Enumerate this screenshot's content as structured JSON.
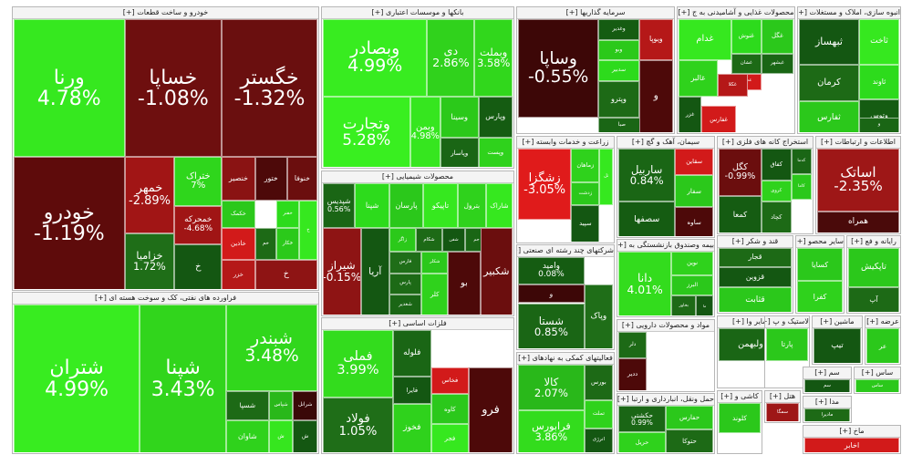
{
  "chart_data": {
    "type": "treemap",
    "colors": {
      "strong_up": "#2fe01b",
      "up": "#27b61a",
      "mild_up": "#2a8c20",
      "flat_green": "#1f6b1a",
      "dark_green": "#155c12",
      "dark_down": "#4a0a0a",
      "down": "#7a1212",
      "mild_down": "#9e1717",
      "strong_down": "#e01b1b"
    },
    "groups": [
      {
        "title": "خودرو و ساخت قطعات [+]",
        "tiles": [
          {
            "name": "ورنا",
            "change": "4.78%",
            "color": "#36e81f"
          },
          {
            "name": "خساپا",
            "change": "-1.08%",
            "color": "#6e0f0f"
          },
          {
            "name": "خگستر",
            "change": "-1.32%",
            "color": "#6a0f0f"
          },
          {
            "name": "خودرو",
            "change": "-1.19%",
            "color": "#5e0b0b"
          },
          {
            "name": "خمهر",
            "change": "-2.89%",
            "color": "#a11515"
          },
          {
            "name": "ختراک",
            "change": "7%",
            "color": "#2fd61c"
          },
          {
            "name": "خنصیر",
            "change": "",
            "color": "#8a1313"
          },
          {
            "name": "ختور",
            "change": "",
            "color": "#4d0909"
          },
          {
            "name": "خنوفا",
            "change": "",
            "color": "#6b0e0e"
          },
          {
            "name": "خمحرکه",
            "change": "-4.68%",
            "color": "#a01515"
          },
          {
            "name": "خکمک",
            "change": "",
            "color": "#2bc81b"
          },
          {
            "name": "خفنر",
            "change": "",
            "color": "#2ddb1c"
          },
          {
            "name": "خزامیا",
            "change": "1.72%",
            "color": "#1f6e18"
          },
          {
            "name": "خاذین",
            "change": "",
            "color": "#d21a1a"
          },
          {
            "name": "خم",
            "change": "",
            "color": "#1d6a16"
          },
          {
            "name": "خزر",
            "change": "",
            "color": "#b51818"
          },
          {
            "name": "خکار",
            "change": "",
            "color": "#2bc91a"
          },
          {
            "name": "خ",
            "change": "",
            "color": "#36e81f"
          },
          {
            "name": "خ",
            "change": "",
            "color": "#145712"
          },
          {
            "name": "خ",
            "change": "",
            "color": "#8e1414"
          }
        ]
      },
      {
        "title": "فراورده های نفتی، کک و سوخت هسته ای [+]",
        "tiles": [
          {
            "name": "شتران",
            "change": "4.99%",
            "color": "#38ec20"
          },
          {
            "name": "شپنا",
            "change": "3.43%",
            "color": "#31d51c"
          },
          {
            "name": "شبندر",
            "change": "3.48%",
            "color": "#31d71c"
          },
          {
            "name": "شسپا",
            "change": "",
            "color": "#1d6a16"
          },
          {
            "name": "شاوان",
            "change": "",
            "color": "#2fd21c"
          },
          {
            "name": "شپاس",
            "change": "",
            "color": "#29b81a"
          },
          {
            "name": "شرانل",
            "change": "",
            "color": "#3a0808"
          },
          {
            "name": "ش",
            "change": "",
            "color": "#36e61f"
          },
          {
            "name": "ش",
            "change": "",
            "color": "#145712"
          }
        ]
      },
      {
        "title": "بانکها و موسسات اعتباری [+]",
        "tiles": [
          {
            "name": "وبصادر",
            "change": "4.99%",
            "color": "#38ec20"
          },
          {
            "name": "دی",
            "change": "2.86%",
            "color": "#30d21c"
          },
          {
            "name": "وبملت",
            "change": "3.58%",
            "color": "#31d71c"
          },
          {
            "name": "وتجارت",
            "change": "5.28%",
            "color": "#39ef20"
          },
          {
            "name": "وبمن",
            "change": "4.98%",
            "color": "#36e61f"
          },
          {
            "name": "وسینا",
            "change": "",
            "color": "#2bc91a"
          },
          {
            "name": "وپارس",
            "change": "",
            "color": "#155c12"
          },
          {
            "name": "وپاسار",
            "change": "",
            "color": "#1a6615"
          },
          {
            "name": "وپست",
            "change": "",
            "color": "#2fd21c"
          }
        ]
      },
      {
        "title": "محصولات شیمیایی [+]",
        "tiles": [
          {
            "name": "شپدیس",
            "change": "0.56%",
            "color": "#1a6615"
          },
          {
            "name": "شپنا",
            "change": "",
            "color": "#2ddb1c"
          },
          {
            "name": "پارسان",
            "change": "",
            "color": "#2bc81b"
          },
          {
            "name": "تاپیکو",
            "change": "",
            "color": "#36e81f"
          },
          {
            "name": "بترول",
            "change": "",
            "color": "#2fd21c"
          },
          {
            "name": "شاراک",
            "change": "",
            "color": "#36e81f"
          },
          {
            "name": "زاگر",
            "change": "",
            "color": "#2bc91a"
          },
          {
            "name": "شکام",
            "change": "",
            "color": "#1d6a16"
          },
          {
            "name": "شفن",
            "change": "",
            "color": "#145712"
          },
          {
            "name": "جم",
            "change": "",
            "color": "#1a6615"
          },
          {
            "name": "فارس",
            "change": "",
            "color": "#1f6e18"
          },
          {
            "name": "شکلر",
            "change": "",
            "color": "#2bc81b"
          },
          {
            "name": "شیراز",
            "change": "-0.15%",
            "color": "#8e1414"
          },
          {
            "name": "پارس",
            "change": "",
            "color": "#1d6a16"
          },
          {
            "name": "آریا",
            "change": "",
            "color": "#145712"
          },
          {
            "name": "شغدیر",
            "change": "",
            "color": "#1a6615"
          },
          {
            "name": "کلر",
            "change": "",
            "color": "#2fd21c"
          },
          {
            "name": "بو",
            "change": "",
            "color": "#4d0909"
          },
          {
            "name": "شکبیر",
            "change": "",
            "color": "#6b0e0e"
          }
        ]
      },
      {
        "title": "فلزات اساسی [+]",
        "tiles": [
          {
            "name": "فملی",
            "change": "3.99%",
            "color": "#33dc1d"
          },
          {
            "name": "فولاد",
            "change": "1.05%",
            "color": "#1f6e18"
          },
          {
            "name": "فخوز",
            "change": "",
            "color": "#2fd21c"
          },
          {
            "name": "فلوله",
            "change": "",
            "color": "#1a6615"
          },
          {
            "name": "فخاس",
            "change": "",
            "color": "#d21a1a"
          },
          {
            "name": "کاوه",
            "change": "",
            "color": "#2bc81b"
          },
          {
            "name": "فجر",
            "change": "",
            "color": "#36e81f"
          },
          {
            "name": "فایرا",
            "change": "",
            "color": "#145712"
          },
          {
            "name": "فرو",
            "change": "",
            "color": "#4d0909"
          }
        ]
      },
      {
        "title": "سرمایه گذاریها [+]",
        "tiles": [
          {
            "name": "وساپا",
            "change": "-0.55%",
            "color": "#3d0707"
          },
          {
            "name": "ویوپا",
            "change": "",
            "color": "#b51818"
          },
          {
            "name": "وغدیر",
            "change": "",
            "color": "#155c12"
          },
          {
            "name": "وبو",
            "change": "",
            "color": "#2bc91a"
          },
          {
            "name": "سدبیر",
            "change": "",
            "color": "#2ddb1c"
          },
          {
            "name": "صبا",
            "change": "",
            "color": "#1a6615"
          },
          {
            "name": "وپترو",
            "change": "",
            "color": "#1d6a16"
          },
          {
            "name": "و",
            "change": "",
            "color": "#4d0909"
          }
        ]
      },
      {
        "title": "زراعت و خدمات وابسته [+]",
        "tiles": [
          {
            "name": "زشگزا",
            "change": "-3.05%",
            "color": "#e01b1b"
          },
          {
            "name": "زماهان",
            "change": "",
            "color": "#2fd21c"
          },
          {
            "name": "زدشت",
            "change": "",
            "color": "#2bc81b"
          },
          {
            "name": "سپید",
            "change": "",
            "color": "#145712"
          },
          {
            "name": "تل",
            "change": "",
            "color": "#36e81f"
          }
        ]
      },
      {
        "title": "شرکتهای چند رشته ای صنعتی [+]",
        "tiles": [
          {
            "name": "وامید",
            "change": "0.08%",
            "color": "#155c12"
          },
          {
            "name": "شستا",
            "change": "0.85%",
            "color": "#1a6615"
          },
          {
            "name": "وپاک",
            "change": "",
            "color": "#1f6e18"
          },
          {
            "name": "و",
            "change": "",
            "color": "#3d0707"
          }
        ]
      },
      {
        "title": "فعالیتهای کمکی به نهادهای [+]",
        "tiles": [
          {
            "name": "کالا",
            "change": "2.07%",
            "color": "#29b81a"
          },
          {
            "name": "فرابورس",
            "change": "3.86%",
            "color": "#33dc1d"
          },
          {
            "name": "بورس",
            "change": "",
            "color": "#1d6a16"
          },
          {
            "name": "تملت",
            "change": "",
            "color": "#2fd21c"
          },
          {
            "name": "انرژی",
            "change": "",
            "color": "#145712"
          }
        ]
      },
      {
        "title": "محصولات غذایی و آشامیدنی به ج [+]",
        "tiles": [
          {
            "name": "غگل",
            "change": "",
            "color": "#2bc81b"
          },
          {
            "name": "غنوش",
            "change": "",
            "color": "#2ddb1c"
          },
          {
            "name": "غشان",
            "change": "",
            "color": "#1d6a16"
          },
          {
            "name": "غصینو",
            "change": "",
            "color": "#d21a1a"
          },
          {
            "name": "غبشهر",
            "change": "",
            "color": "#1a6615"
          },
          {
            "name": "غالبر",
            "change": "",
            "color": "#2fd21c"
          },
          {
            "name": "غکلا",
            "change": "",
            "color": "#b51818"
          },
          {
            "name": "غزر",
            "change": "",
            "color": "#145712"
          },
          {
            "name": "غفارس",
            "change": "",
            "color": "#d21a1a"
          },
          {
            "name": "غدام",
            "change": "",
            "color": "#36e81f"
          }
        ]
      },
      {
        "title": "انبوه سازی، املاک و مستغلات [+]",
        "tiles": [
          {
            "name": "کرمان",
            "change": "",
            "color": "#1d6a16"
          },
          {
            "name": "ثاوند",
            "change": "",
            "color": "#2ddb1c"
          },
          {
            "name": "ثفارس",
            "change": "",
            "color": "#2bc81b"
          },
          {
            "name": "وتوس",
            "change": "",
            "color": "#155c12"
          },
          {
            "name": "ثبهساز",
            "change": "",
            "color": "#145712"
          },
          {
            "name": "ثاخت",
            "change": "",
            "color": "#36e81f"
          },
          {
            "name": "و",
            "change": "",
            "color": "#1a6615"
          }
        ]
      },
      {
        "title": "سیمان، آهک و گچ [+]",
        "tiles": [
          {
            "name": "ساربیل",
            "change": "0.84%",
            "color": "#1a6615"
          },
          {
            "name": "سقاین",
            "change": "",
            "color": "#d21a1a"
          },
          {
            "name": "سصفها",
            "change": "",
            "color": "#155c12"
          },
          {
            "name": "سفار",
            "change": "",
            "color": "#2bc81b"
          },
          {
            "name": "ساوه",
            "change": "",
            "color": "#4d0909"
          }
        ]
      },
      {
        "title": "استخراج کانه های فلزی [+]",
        "tiles": [
          {
            "name": "کگل",
            "change": "-0.99%",
            "color": "#6b0e0e"
          },
          {
            "name": "کچاد",
            "change": "",
            "color": "#1d6a16"
          },
          {
            "name": "کاما",
            "change": "",
            "color": "#2bc81b"
          },
          {
            "name": "کدما",
            "change": "",
            "color": "#1a6615"
          },
          {
            "name": "کروی",
            "change": "",
            "color": "#2fd21c"
          },
          {
            "name": "کفاق",
            "change": "",
            "color": "#145712"
          },
          {
            "name": "کمعا",
            "change": "",
            "color": "#155c12"
          }
        ]
      },
      {
        "title": "اطلاعات و ارتباطات [+]",
        "tiles": [
          {
            "name": "اساتک",
            "change": "-2.35%",
            "color": "#9e1717"
          },
          {
            "name": "همراه",
            "change": "",
            "color": "#4a0a0a"
          }
        ]
      },
      {
        "title": "بیمه وصندوق بازنشستگی به [+]",
        "tiles": [
          {
            "name": "دانا",
            "change": "4.01%",
            "color": "#33dc1d"
          },
          {
            "name": "نوین",
            "change": "",
            "color": "#2fd21c"
          },
          {
            "name": "البرز",
            "change": "",
            "color": "#2bc81b"
          },
          {
            "name": "بخاور",
            "change": "",
            "color": "#1d6a16"
          },
          {
            "name": "ما",
            "change": "",
            "color": "#145712"
          }
        ]
      },
      {
        "title": "قند و شکر [+]",
        "tiles": [
          {
            "name": "قجار",
            "change": "",
            "color": "#1d6a16"
          },
          {
            "name": "قزوین",
            "change": "",
            "color": "#145712"
          },
          {
            "name": "قثابت",
            "change": "",
            "color": "#2bc81b"
          }
        ]
      },
      {
        "title": "سایر محصو [+]",
        "tiles": [
          {
            "name": "کسایا",
            "change": "",
            "color": "#2bc81b"
          },
          {
            "name": "کفرا",
            "change": "",
            "color": "#2fd21c"
          }
        ]
      },
      {
        "title": "رایانه و فع [+]",
        "tiles": [
          {
            "name": "تاپکیش",
            "change": "",
            "color": "#2bc81b"
          },
          {
            "name": "آپ",
            "change": "",
            "color": "#1d6a16"
          }
        ]
      },
      {
        "title": "مواد و محصولات دارویی [+]",
        "tiles": [
          {
            "name": "ددیر",
            "change": "",
            "color": "#4d0909"
          },
          {
            "name": "دلر",
            "change": "",
            "color": "#1d6a16"
          }
        ]
      },
      {
        "title": "سایر وا [+]",
        "tiles": [
          {
            "name": "ولبهمن",
            "change": "",
            "color": "#1a6615"
          }
        ]
      },
      {
        "title": "حمل ونقل، انبارداری و ارتبا [+]",
        "tiles": [
          {
            "name": "حفارس",
            "change": "",
            "color": "#2bc81b"
          },
          {
            "name": "حتوکا",
            "change": "",
            "color": "#1d6a16"
          },
          {
            "name": "حریل",
            "change": "",
            "color": "#2fd21c"
          },
          {
            "name": "حکشتی",
            "change": "0.99%",
            "color": "#1a6615"
          }
        ]
      },
      {
        "title": "کاشی و [+]",
        "tiles": [
          {
            "name": "کلوند",
            "change": "",
            "color": "#2bc81b"
          }
        ]
      },
      {
        "title": "لاستیک و پ [+]",
        "tiles": [
          {
            "name": "پارتا",
            "change": "",
            "color": "#2bc81b"
          }
        ]
      },
      {
        "title": "ماشین [+]",
        "tiles": [
          {
            "name": "تیپ",
            "change": "",
            "color": "#145712"
          }
        ]
      },
      {
        "title": "عرضه [+]",
        "tiles": [
          {
            "name": "عر",
            "change": "",
            "color": "#2bc81b"
          }
        ]
      },
      {
        "title": "هتل [+]",
        "tiles": [
          {
            "name": "سمگا",
            "change": "",
            "color": "#9e1717"
          }
        ]
      },
      {
        "title": "سم [+]",
        "tiles": [
          {
            "name": "سم",
            "change": "",
            "color": "#145712"
          }
        ]
      },
      {
        "title": "ساس [+]",
        "tiles": [
          {
            "name": "ساس",
            "change": "",
            "color": "#2bc81b"
          }
        ]
      },
      {
        "title": "مدا [+]",
        "tiles": [
          {
            "name": "مادیرا",
            "change": "",
            "color": "#1d6a16"
          }
        ]
      },
      {
        "title": "ماخ [+]",
        "tiles": [
          {
            "name": "اخابر",
            "change": "",
            "color": "#d21a1a"
          }
        ]
      }
    ]
  }
}
